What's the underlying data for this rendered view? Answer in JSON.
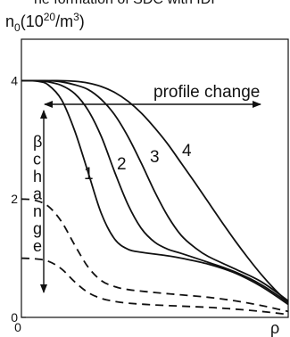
{
  "header": {
    "caption_fragment": "he formation of SDC with IDI"
  },
  "chart_data": {
    "type": "line",
    "title": "",
    "ylabel": "n0(10^20/m^3)",
    "ylabel_parts": {
      "base": "n",
      "sub": "0",
      "open": "(10",
      "sup1": "20",
      "mid": "/m",
      "sup2": "3",
      "close": ")"
    },
    "xlabel": "ρ",
    "xlim": [
      0,
      1
    ],
    "ylim": [
      0,
      4.7
    ],
    "y_ticks": [
      {
        "value": 0,
        "label": "0"
      },
      {
        "value": 2,
        "label": "2"
      },
      {
        "value": 4,
        "label": "4"
      }
    ],
    "x_ticks": [
      {
        "value": 0,
        "label": "0"
      }
    ],
    "series": [
      {
        "label": "1",
        "style": "solid",
        "x": [
          0,
          0.06,
          0.1,
          0.15,
          0.2,
          0.25,
          0.3,
          0.35,
          0.4,
          0.45,
          0.5,
          0.55,
          0.6,
          0.7,
          0.8,
          0.9,
          1.0
        ],
        "y": [
          4.0,
          3.99,
          3.93,
          3.68,
          3.15,
          2.45,
          1.75,
          1.32,
          1.15,
          1.1,
          1.07,
          1.04,
          1.0,
          0.9,
          0.75,
          0.52,
          0.22
        ]
      },
      {
        "label": "2",
        "style": "solid",
        "x": [
          0,
          0.06,
          0.1,
          0.15,
          0.2,
          0.25,
          0.3,
          0.35,
          0.4,
          0.45,
          0.5,
          0.55,
          0.6,
          0.7,
          0.8,
          0.9,
          1.0
        ],
        "y": [
          4.0,
          4.0,
          3.98,
          3.92,
          3.78,
          3.5,
          3.05,
          2.45,
          1.9,
          1.5,
          1.27,
          1.15,
          1.08,
          0.93,
          0.77,
          0.55,
          0.25
        ]
      },
      {
        "label": "3",
        "style": "solid",
        "x": [
          0,
          0.06,
          0.1,
          0.15,
          0.2,
          0.25,
          0.3,
          0.35,
          0.4,
          0.45,
          0.5,
          0.55,
          0.6,
          0.65,
          0.7,
          0.8,
          0.9,
          1.0
        ],
        "y": [
          4.0,
          4.0,
          4.0,
          3.98,
          3.93,
          3.85,
          3.68,
          3.42,
          3.05,
          2.6,
          2.12,
          1.7,
          1.38,
          1.18,
          1.03,
          0.82,
          0.6,
          0.28
        ]
      },
      {
        "label": "4",
        "style": "solid",
        "x": [
          0,
          0.06,
          0.1,
          0.15,
          0.2,
          0.25,
          0.3,
          0.35,
          0.4,
          0.45,
          0.5,
          0.55,
          0.6,
          0.65,
          0.7,
          0.75,
          0.8,
          0.85,
          0.9,
          0.95,
          1.0
        ],
        "y": [
          4.0,
          4.0,
          4.0,
          4.0,
          3.99,
          3.96,
          3.9,
          3.8,
          3.65,
          3.45,
          3.2,
          2.92,
          2.6,
          2.28,
          1.95,
          1.62,
          1.3,
          1.0,
          0.72,
          0.47,
          0.25
        ]
      },
      {
        "label": "",
        "style": "dashed",
        "x": [
          0,
          0.05,
          0.1,
          0.15,
          0.2,
          0.25,
          0.3,
          0.35,
          0.4,
          0.5,
          0.6,
          0.7,
          0.8,
          0.9,
          1.0
        ],
        "y": [
          2.0,
          1.98,
          1.88,
          1.62,
          1.22,
          0.85,
          0.62,
          0.52,
          0.47,
          0.42,
          0.38,
          0.34,
          0.28,
          0.2,
          0.1
        ]
      },
      {
        "label": "",
        "style": "dashed",
        "x": [
          0,
          0.05,
          0.1,
          0.15,
          0.2,
          0.25,
          0.3,
          0.35,
          0.4,
          0.5,
          0.6,
          0.7,
          0.8,
          0.9,
          1.0
        ],
        "y": [
          1.0,
          0.99,
          0.95,
          0.82,
          0.6,
          0.42,
          0.32,
          0.27,
          0.24,
          0.21,
          0.19,
          0.17,
          0.14,
          0.1,
          0.05
        ]
      }
    ],
    "annotations": {
      "profile_change": "profile change",
      "beta_change_letters": [
        "β",
        "c",
        "h",
        "a",
        "n",
        "g",
        "e"
      ]
    },
    "colors": {
      "line": "#111111",
      "background": "#ffffff"
    }
  }
}
